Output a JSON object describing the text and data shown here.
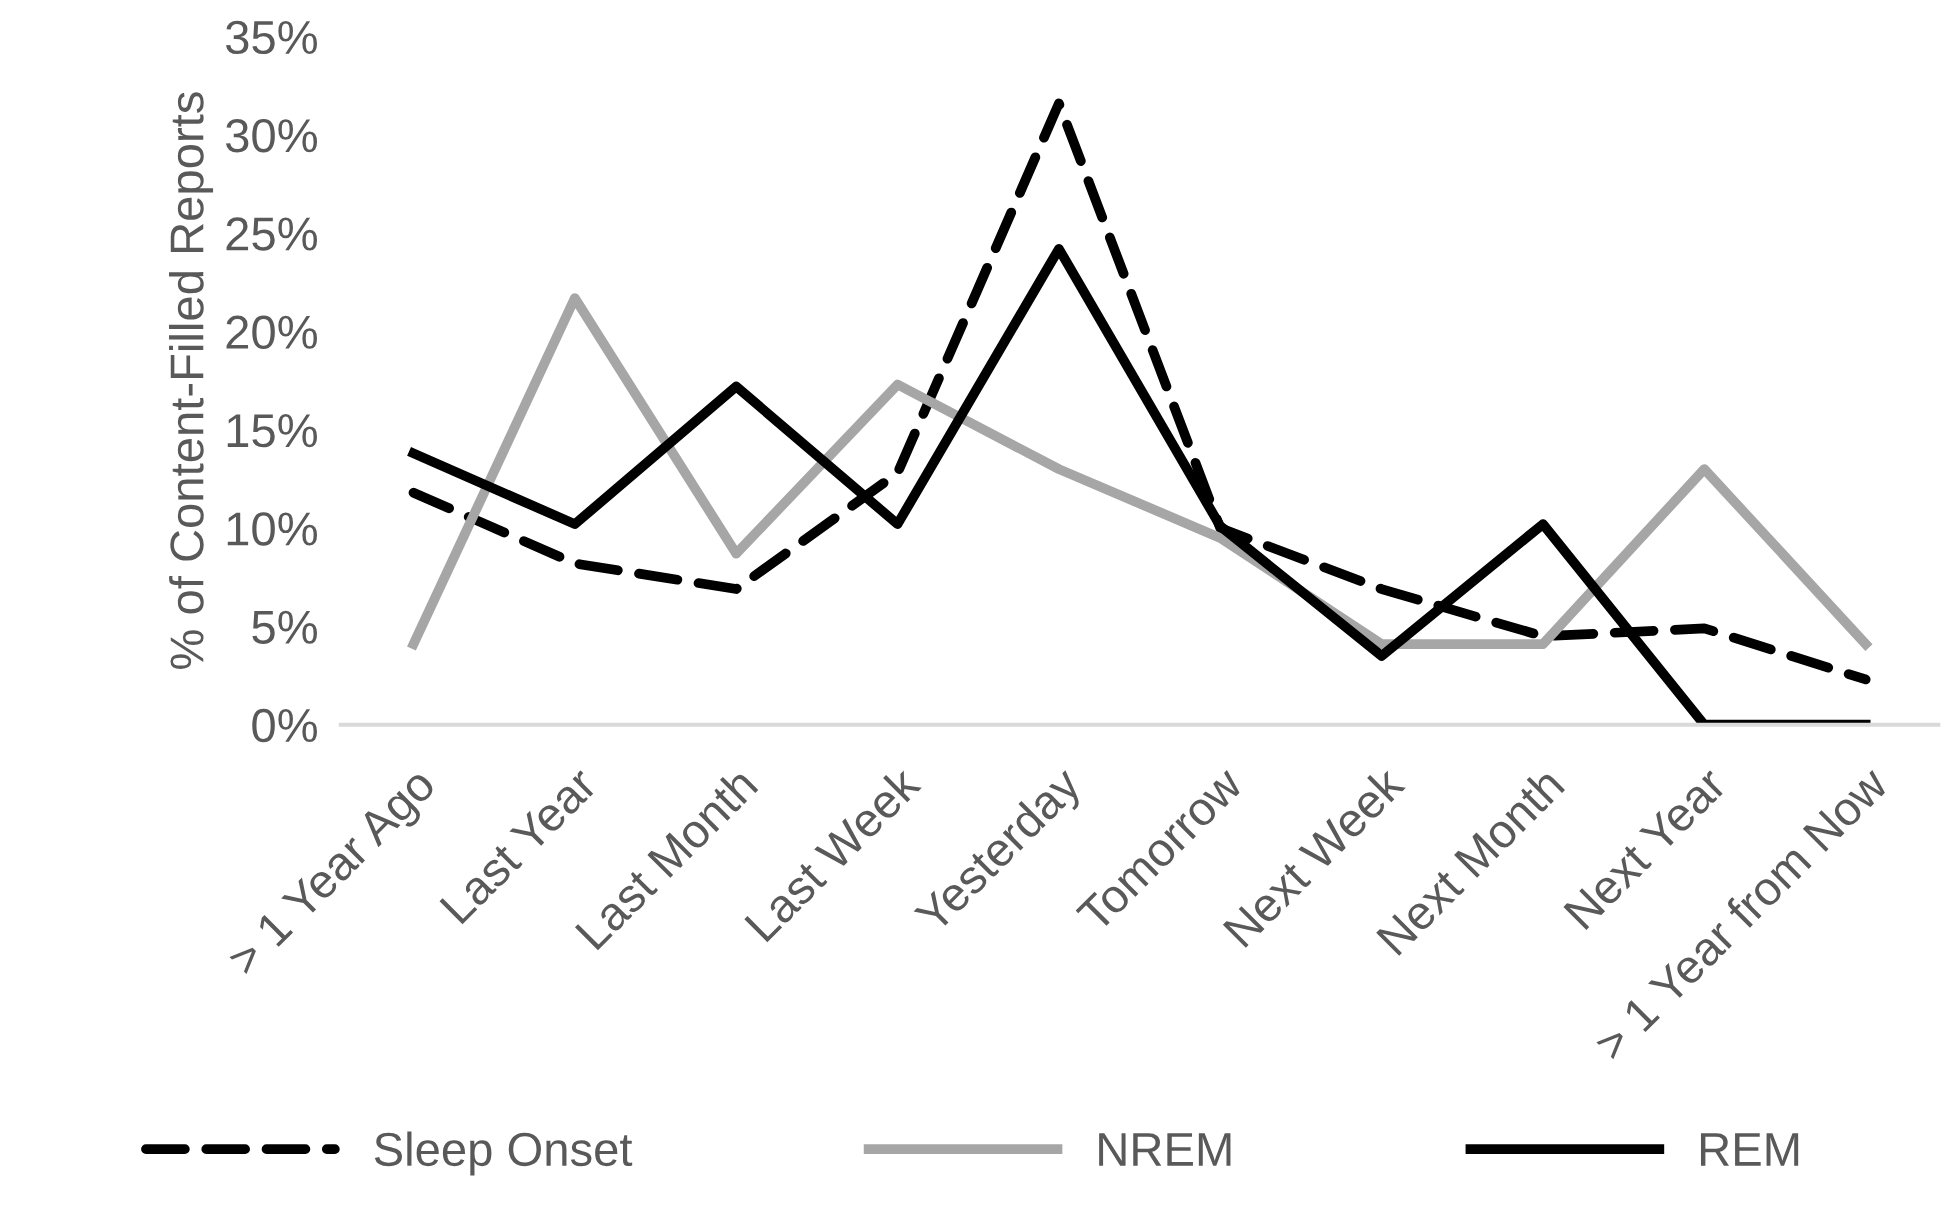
{
  "chart_data": {
    "type": "line",
    "ylabel": "% of Content-Filled Reports",
    "categories": [
      "> 1 Year Ago",
      "Last Year",
      "Last Month",
      "Last Week",
      "Yesterday",
      "Tomorrow",
      "Next Week",
      "Next Month",
      "Next Year",
      "> 1 Year from Now"
    ],
    "series": [
      {
        "name": "Sleep Onset",
        "color": "#000000",
        "line_style": "dashed",
        "values": [
          11.8,
          8.2,
          6.9,
          12.8,
          31.6,
          10.0,
          6.9,
          4.5,
          4.9,
          2.3
        ]
      },
      {
        "name": "NREM",
        "color": "#a6a6a6",
        "line_style": "solid",
        "values": [
          4.1,
          21.7,
          8.7,
          17.3,
          13.0,
          9.5,
          4.1,
          4.1,
          13.0,
          4.1
        ]
      },
      {
        "name": "REM",
        "color": "#000000",
        "line_style": "solid",
        "values": [
          13.8,
          10.2,
          17.2,
          10.2,
          24.2,
          10.1,
          3.5,
          10.2,
          0,
          0
        ]
      }
    ],
    "ylim": [
      0,
      35
    ],
    "yticks": [
      {
        "value": 0,
        "label": "0%"
      },
      {
        "value": 5,
        "label": "5%"
      },
      {
        "value": 10,
        "label": "10%"
      },
      {
        "value": 15,
        "label": "15%"
      },
      {
        "value": 20,
        "label": "20%"
      },
      {
        "value": 25,
        "label": "25%"
      },
      {
        "value": 30,
        "label": "30%"
      },
      {
        "value": 35,
        "label": "35%"
      }
    ],
    "grid": false,
    "legend": "bottom",
    "marker": "none"
  }
}
